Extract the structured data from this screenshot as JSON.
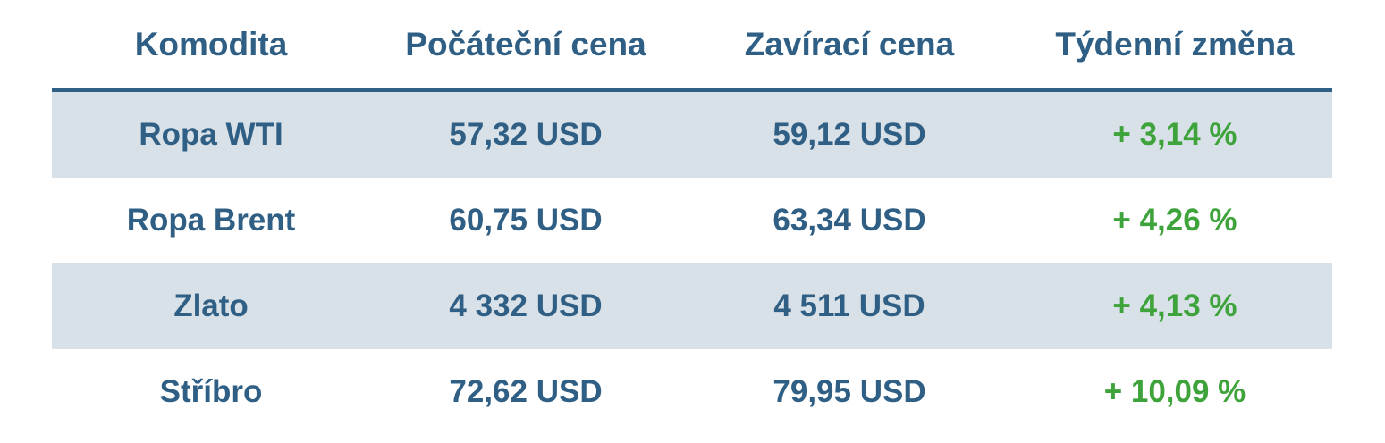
{
  "colors": {
    "text": "#2f5f84",
    "shaded_row": "#d8e0e8",
    "positive": "#3ea33b"
  },
  "headers": [
    "Komodita",
    "Počáteční cena",
    "Zavírací cena",
    "Týdenní změna"
  ],
  "rows": [
    [
      "Ropa WTI",
      "57,32 USD",
      "59,12 USD",
      "+ 3,14 %"
    ],
    [
      "Ropa Brent",
      "60,75 USD",
      "63,34 USD",
      "+ 4,26 %"
    ],
    [
      "Zlato",
      "4 332 USD",
      "4 511 USD",
      "+ 4,13 %"
    ],
    [
      "Stříbro",
      "72,62 USD",
      "79,95 USD",
      "+ 10,09 %"
    ]
  ]
}
